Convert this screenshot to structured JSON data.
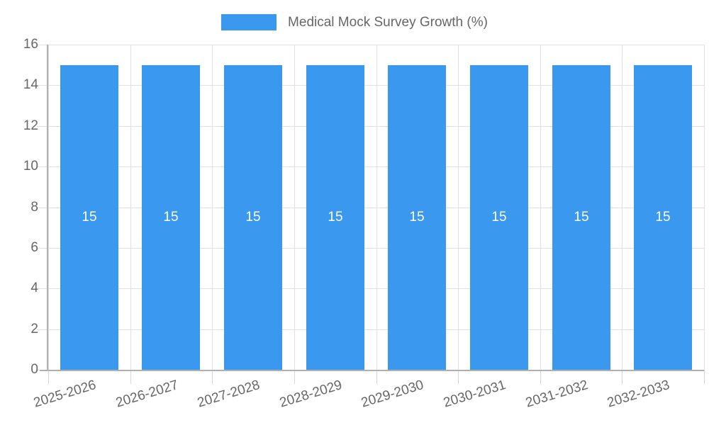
{
  "chart_data": {
    "type": "bar",
    "title": "Medical Mock Survey Growth (%)",
    "categories": [
      "2025-2026",
      "2026-2027",
      "2027-2028",
      "2028-2029",
      "2029-2030",
      "2030-2031",
      "2031-2032",
      "2032-2033"
    ],
    "values": [
      15,
      15,
      15,
      15,
      15,
      15,
      15,
      15
    ],
    "bar_value_labels": [
      "15",
      "15",
      "15",
      "15",
      "15",
      "15",
      "15",
      "15"
    ],
    "xlabel": "",
    "ylabel": "",
    "ylim": [
      0,
      16
    ],
    "yticks": [
      0,
      2,
      4,
      6,
      8,
      10,
      12,
      14,
      16
    ],
    "legend_position": "top",
    "grid": true,
    "colors": {
      "bar": "#3A99EE",
      "grid": "#E0E0E0",
      "tick": "#D6D6D6",
      "axis": "#B0B0B0",
      "text": "#666666",
      "bar_label": "#FFFFFF",
      "background": "#FFFFFF"
    }
  }
}
